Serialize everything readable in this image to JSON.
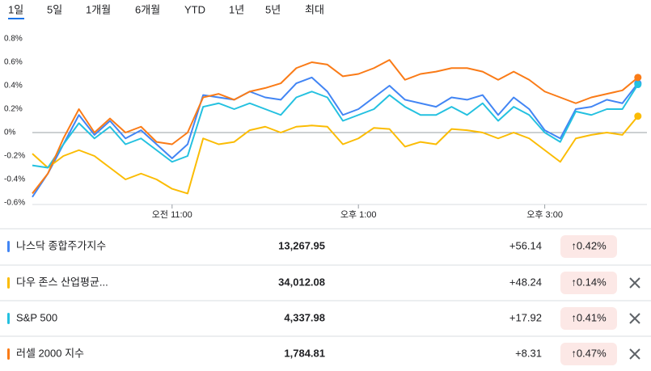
{
  "tabs": [
    "1일",
    "5일",
    "1개월",
    "6개월",
    "YTD",
    "1년",
    "5년",
    "최대"
  ],
  "chart_data": {
    "type": "line",
    "categories": [
      null,
      null,
      null,
      null,
      null,
      null,
      null,
      null,
      null,
      "오전 11:00",
      null,
      null,
      null,
      null,
      null,
      null,
      null,
      null,
      null,
      null,
      null,
      "오후 1:00",
      null,
      null,
      null,
      null,
      null,
      null,
      null,
      null,
      null,
      null,
      null,
      "오후 3:00",
      null,
      null,
      null,
      null,
      null,
      null
    ],
    "series": [
      {
        "name": "나스닥 종합주가지수",
        "color": "#4285f4",
        "values": [
          -0.55,
          -0.35,
          -0.1,
          0.15,
          -0.02,
          0.1,
          -0.05,
          0.02,
          -0.1,
          -0.22,
          -0.1,
          0.32,
          0.3,
          0.28,
          0.35,
          0.3,
          0.28,
          0.42,
          0.47,
          0.35,
          0.15,
          0.2,
          0.3,
          0.4,
          0.28,
          0.25,
          0.22,
          0.3,
          0.28,
          0.32,
          0.15,
          0.3,
          0.2,
          0.02,
          -0.05,
          0.2,
          0.22,
          0.28,
          0.25,
          0.42
        ]
      },
      {
        "name": "다우 존스 산업평균...",
        "color": "#fbbc04",
        "values": [
          -0.18,
          -0.3,
          -0.2,
          -0.15,
          -0.2,
          -0.3,
          -0.4,
          -0.35,
          -0.4,
          -0.48,
          -0.52,
          -0.05,
          -0.1,
          -0.08,
          0.02,
          0.05,
          0.0,
          0.05,
          0.06,
          0.05,
          -0.1,
          -0.05,
          0.04,
          0.03,
          -0.12,
          -0.08,
          -0.1,
          0.03,
          0.02,
          0.0,
          -0.05,
          0.0,
          -0.05,
          -0.15,
          -0.25,
          -0.05,
          -0.02,
          0.0,
          -0.02,
          0.14
        ]
      },
      {
        "name": "S&P 500",
        "color": "#24c1e0",
        "values": [
          -0.28,
          -0.3,
          -0.1,
          0.08,
          -0.05,
          0.05,
          -0.1,
          -0.05,
          -0.15,
          -0.25,
          -0.2,
          0.22,
          0.25,
          0.2,
          0.25,
          0.2,
          0.15,
          0.3,
          0.35,
          0.3,
          0.1,
          0.15,
          0.2,
          0.32,
          0.22,
          0.15,
          0.15,
          0.22,
          0.15,
          0.25,
          0.1,
          0.22,
          0.15,
          0.0,
          -0.08,
          0.18,
          0.15,
          0.2,
          0.2,
          0.41
        ]
      },
      {
        "name": "러셀 2000 지수",
        "color": "#fa7b17",
        "values": [
          -0.52,
          -0.35,
          -0.05,
          0.2,
          0.0,
          0.12,
          0.0,
          0.05,
          -0.08,
          -0.1,
          0.0,
          0.3,
          0.33,
          0.28,
          0.35,
          0.38,
          0.42,
          0.55,
          0.6,
          0.58,
          0.48,
          0.5,
          0.55,
          0.62,
          0.45,
          0.5,
          0.52,
          0.55,
          0.55,
          0.52,
          0.45,
          0.52,
          0.45,
          0.35,
          0.3,
          0.25,
          0.3,
          0.33,
          0.36,
          0.47
        ]
      }
    ],
    "ylim": [
      -0.6,
      0.8
    ],
    "yticks": [
      {
        "value": 0.8,
        "label": "0.8%"
      },
      {
        "value": 0.6,
        "label": "0.6%"
      },
      {
        "value": 0.4,
        "label": "0.4%"
      },
      {
        "value": 0.2,
        "label": "0.2%"
      },
      {
        "value": 0,
        "label": "0%"
      },
      {
        "value": -0.2,
        "label": "-0.2%"
      },
      {
        "value": -0.4,
        "label": "-0.4%"
      },
      {
        "value": -0.6,
        "label": "-0.6%"
      }
    ],
    "grid": false,
    "zero_line": true
  },
  "table": {
    "rows": [
      {
        "price": "13,267.95",
        "change": "+56.14",
        "percent": "↑0.42%",
        "close": false
      },
      {
        "price": "34,012.08",
        "change": "+48.24",
        "percent": "↑0.14%",
        "close": true
      },
      {
        "price": "4,337.98",
        "change": "+17.92",
        "percent": "↑0.41%",
        "close": true
      },
      {
        "price": "1,784.81",
        "change": "+8.31",
        "percent": "↑0.47%",
        "close": true
      }
    ]
  }
}
